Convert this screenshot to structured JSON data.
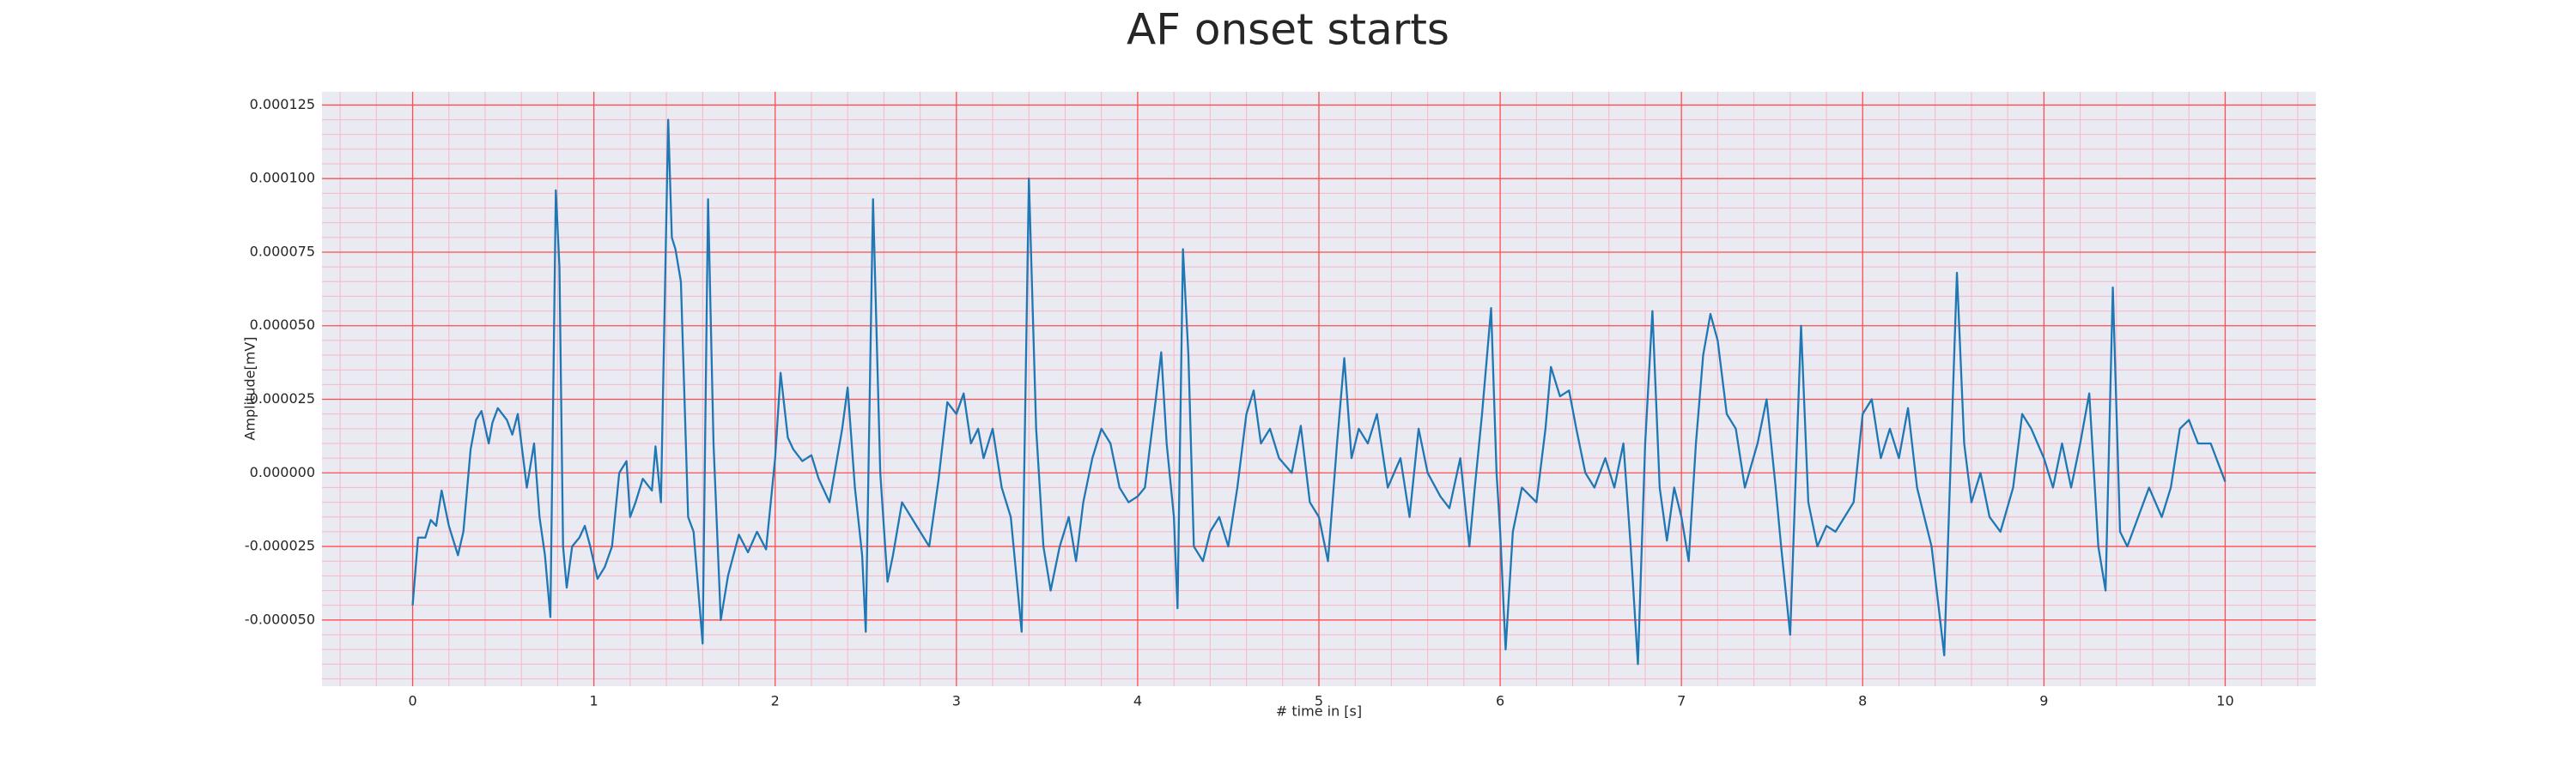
{
  "chart_data": {
    "type": "line",
    "title": "AF onset starts",
    "xlabel": "# time in [s]",
    "ylabel": "Amplitude[mV]",
    "xlim": [
      -0.5,
      10.5
    ],
    "ylim": [
      -7.25e-05,
      0.0001295
    ],
    "xticks": [
      0,
      1,
      2,
      3,
      4,
      5,
      6,
      7,
      8,
      9,
      10
    ],
    "yticks": [
      {
        "value": -5e-05,
        "label": "-0.000050"
      },
      {
        "value": -2.5e-05,
        "label": "-0.000025"
      },
      {
        "value": 0,
        "label": "0.000000"
      },
      {
        "value": 2.5e-05,
        "label": "0.000025"
      },
      {
        "value": 5e-05,
        "label": "0.000050"
      },
      {
        "value": 7.5e-05,
        "label": "0.000075"
      },
      {
        "value": 0.0001,
        "label": "0.000100"
      },
      {
        "value": 0.000125,
        "label": "0.000125"
      }
    ],
    "grid": true,
    "minor_grid": true,
    "grid_color": "#ff4d4d",
    "minor_grid_color": "#f6b8c4",
    "background": "#eaeaf2",
    "series": [
      {
        "color": "#1f77b4",
        "x": [
          0,
          0.03,
          0.07,
          0.1,
          0.13,
          0.16,
          0.2,
          0.25,
          0.28,
          0.32,
          0.35,
          0.38,
          0.42,
          0.44,
          0.47,
          0.52,
          0.55,
          0.58,
          0.61,
          0.63,
          0.67,
          0.7,
          0.73,
          0.76,
          0.79,
          0.81,
          0.83,
          0.85,
          0.88,
          0.92,
          0.95,
          0.98,
          1.02,
          1.06,
          1.1,
          1.14,
          1.18,
          1.2,
          1.23,
          1.27,
          1.32,
          1.34,
          1.37,
          1.41,
          1.43,
          1.45,
          1.48,
          1.52,
          1.55,
          1.6,
          1.63,
          1.66,
          1.7,
          1.74,
          1.8,
          1.85,
          1.9,
          1.95,
          2.0,
          2.03,
          2.07,
          2.1,
          2.15,
          2.2,
          2.24,
          2.3,
          2.37,
          2.4,
          2.44,
          2.48,
          2.5,
          2.54,
          2.58,
          2.62,
          2.65,
          2.7,
          2.75,
          2.8,
          2.85,
          2.9,
          2.95,
          3.0,
          3.04,
          3.08,
          3.12,
          3.15,
          3.2,
          3.25,
          3.3,
          3.36,
          3.4,
          3.44,
          3.48,
          3.52,
          3.57,
          3.62,
          3.66,
          3.7,
          3.75,
          3.8,
          3.85,
          3.9,
          3.95,
          4.0,
          4.04,
          4.1,
          4.13,
          4.16,
          4.2,
          4.22,
          4.25,
          4.28,
          4.31,
          4.36,
          4.4,
          4.45,
          4.5,
          4.55,
          4.6,
          4.64,
          4.68,
          4.73,
          4.78,
          4.85,
          4.9,
          4.95,
          5.0,
          5.05,
          5.1,
          5.14,
          5.18,
          5.22,
          5.27,
          5.32,
          5.38,
          5.45,
          5.5,
          5.55,
          5.6,
          5.67,
          5.72,
          5.78,
          5.83,
          5.86,
          5.9,
          5.95,
          5.98,
          6.0,
          6.03,
          6.07,
          6.12,
          6.2,
          6.25,
          6.28,
          6.33,
          6.38,
          6.42,
          6.47,
          6.52,
          6.58,
          6.63,
          6.68,
          6.72,
          6.76,
          6.8,
          6.84,
          6.88,
          6.92,
          6.96,
          7.0,
          7.04,
          7.08,
          7.12,
          7.16,
          7.2,
          7.25,
          7.3,
          7.35,
          7.42,
          7.47,
          7.52,
          7.55,
          7.6,
          7.66,
          7.7,
          7.75,
          7.8,
          7.85,
          7.9,
          7.95,
          8.0,
          8.05,
          8.1,
          8.15,
          8.2,
          8.25,
          8.3,
          8.38,
          8.45,
          8.52,
          8.56,
          8.6,
          8.65,
          8.7,
          8.76,
          8.83,
          8.88,
          8.93,
          9.0,
          9.05,
          9.1,
          9.15,
          9.2,
          9.25,
          9.3,
          9.34,
          9.38,
          9.42,
          9.46,
          9.52,
          9.58,
          9.65,
          9.7,
          9.75,
          9.8,
          9.85,
          9.92,
          10.0
        ],
        "values": [
          -4.5e-05,
          -2.2e-05,
          -2.2e-05,
          -1.6e-05,
          -1.8e-05,
          -6e-06,
          -1.8e-05,
          -2.8e-05,
          -2e-05,
          8e-06,
          1.8e-05,
          2.1e-05,
          1e-05,
          1.7e-05,
          2.2e-05,
          1.8e-05,
          1.3e-05,
          2e-05,
          5e-06,
          -5e-06,
          1e-05,
          -1.5e-05,
          -2.8e-05,
          -4.9e-05,
          9.6e-05,
          7e-05,
          -2.5e-05,
          -3.9e-05,
          -2.5e-05,
          -2.2e-05,
          -1.8e-05,
          -2.5e-05,
          -3.6e-05,
          -3.2e-05,
          -2.5e-05,
          0,
          4e-06,
          -1.5e-05,
          -1e-05,
          -2e-06,
          -6e-06,
          9e-06,
          -1e-05,
          0.00012,
          8e-05,
          7.6e-05,
          6.5e-05,
          -1.5e-05,
          -2e-05,
          -5.8e-05,
          9.3e-05,
          1e-05,
          -5e-05,
          -3.5e-05,
          -2.1e-05,
          -2.7e-05,
          -2e-05,
          -2.6e-05,
          5e-06,
          3.4e-05,
          1.2e-05,
          8e-06,
          4e-06,
          6e-06,
          -2e-06,
          -1e-05,
          1.5e-05,
          2.9e-05,
          -5e-06,
          -2.8e-05,
          -5.4e-05,
          9.3e-05,
          0,
          -3.7e-05,
          -2.8e-05,
          -1e-05,
          -1.5e-05,
          -2e-05,
          -2.5e-05,
          -3e-06,
          2.4e-05,
          2e-05,
          2.7e-05,
          1e-05,
          1.5e-05,
          5e-06,
          1.5e-05,
          -5e-06,
          -1.5e-05,
          -5.4e-05,
          0.0001,
          1.5e-05,
          -2.5e-05,
          -4e-05,
          -2.5e-05,
          -1.5e-05,
          -3e-05,
          -1e-05,
          5e-06,
          1.5e-05,
          1e-05,
          -5e-06,
          -1e-05,
          -8e-06,
          -5e-06,
          2.5e-05,
          4.1e-05,
          1e-05,
          -1.5e-05,
          -4.6e-05,
          7.6e-05,
          4e-05,
          -2.5e-05,
          -3e-05,
          -2e-05,
          -1.5e-05,
          -2.5e-05,
          -5e-06,
          2e-05,
          2.8e-05,
          1e-05,
          1.5e-05,
          5e-06,
          0,
          1.6e-05,
          -1e-05,
          -1.5e-05,
          -3e-05,
          1e-05,
          3.9e-05,
          5e-06,
          1.5e-05,
          1e-05,
          2e-05,
          -5e-06,
          5e-06,
          -1.5e-05,
          1.5e-05,
          0,
          -8e-06,
          -1.2e-05,
          5e-06,
          -2.5e-05,
          -5e-06,
          2e-05,
          5.6e-05,
          0,
          -2e-05,
          -6e-05,
          -2e-05,
          -5e-06,
          -1e-05,
          1.5e-05,
          3.6e-05,
          2.6e-05,
          2.8e-05,
          1.5e-05,
          0,
          -5e-06,
          5e-06,
          -5e-06,
          1e-05,
          -2.5e-05,
          -6.5e-05,
          1e-05,
          5.5e-05,
          -5e-06,
          -2.3e-05,
          -5e-06,
          -1.5e-05,
          -3e-05,
          1e-05,
          4e-05,
          5.4e-05,
          4.5e-05,
          2e-05,
          1.5e-05,
          -5e-06,
          1e-05,
          2.5e-05,
          -5e-06,
          -2.5e-05,
          -5.5e-05,
          5e-05,
          -1e-05,
          -2.5e-05,
          -1.8e-05,
          -2e-05,
          -1.5e-05,
          -1e-05,
          2e-05,
          2.5e-05,
          5e-06,
          1.5e-05,
          5e-06,
          2.2e-05,
          -5e-06,
          -2.5e-05,
          -6.2e-05,
          6.8e-05,
          1e-05,
          -1e-05,
          0,
          -1.5e-05,
          -2e-05,
          -5e-06,
          2e-05,
          1.5e-05,
          5e-06,
          -5e-06,
          1e-05,
          -5e-06,
          1e-05,
          2.7e-05,
          -2.5e-05,
          -4e-05,
          6.3e-05,
          -2e-05,
          -2.5e-05,
          -1.5e-05,
          -5e-06,
          -1.5e-05,
          -5e-06,
          1.5e-05,
          1.8e-05,
          1e-05,
          1e-05,
          -3e-06
        ]
      }
    ]
  }
}
